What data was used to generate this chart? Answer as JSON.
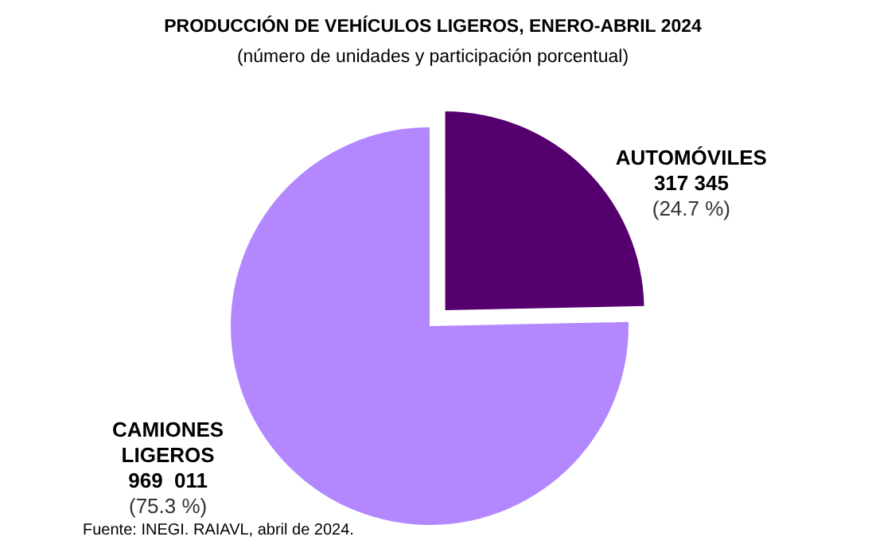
{
  "chart_data": {
    "type": "pie",
    "title": "PRODUCCIÓN DE VEHÍCULOS LIGEROS, ENERO-ABRIL 2024",
    "subtitle": "(número de unidades y participación porcentual)",
    "categories": [
      "AUTOMÓVILES",
      "CAMIONES LIGEROS"
    ],
    "values": [
      317345,
      969011
    ],
    "colors": [
      "#55006e",
      "#b388ff"
    ],
    "value_labels": [
      "317 345",
      "969  011"
    ],
    "annotations": [
      "(24.7 %)",
      "(75.3 %)",
      "Fuente: INEGI. RAIAVL, abril de 2024."
    ]
  }
}
